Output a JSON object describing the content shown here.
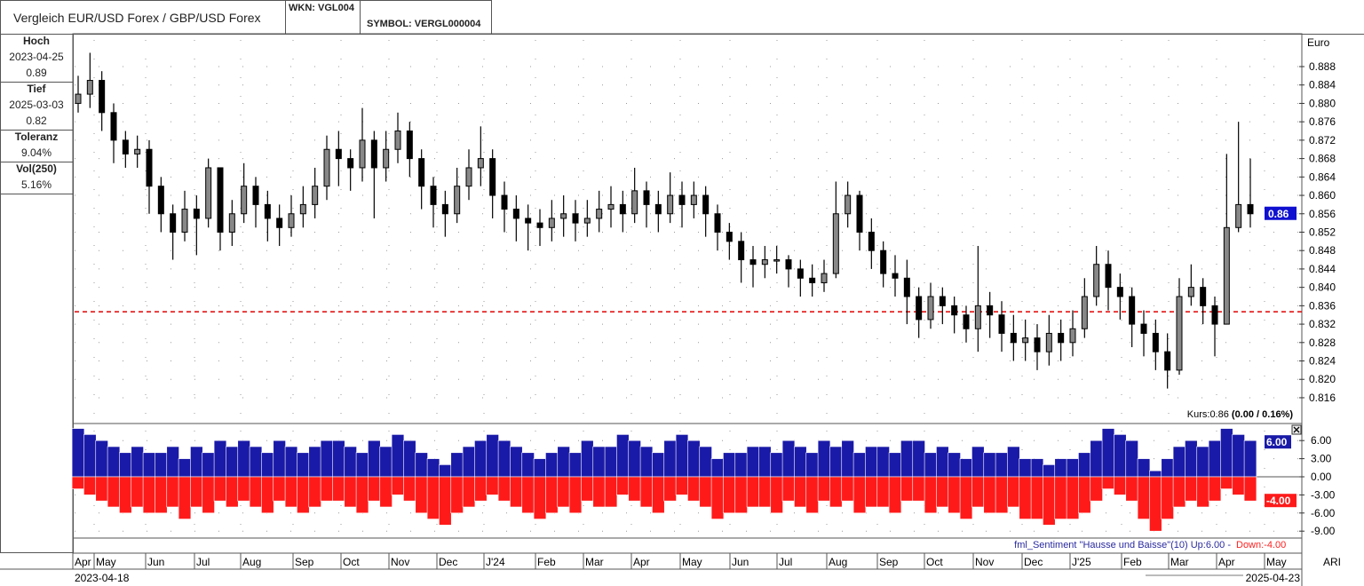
{
  "header": {
    "title": "Vergleich EUR/USD Forex / GBP/USD Forex",
    "wkn": "WKN: VGL004",
    "symbol": "SYMBOL: VERGL000004"
  },
  "stats": {
    "high_label": "Hoch",
    "high_date": "2023-04-25",
    "high_value": "0.89",
    "low_label": "Tief",
    "low_date": "2025-03-03",
    "low_value": "0.82",
    "tolerance_label": "Toleranz",
    "tolerance_value": "9.04%",
    "vol_label": "Vol(250)",
    "vol_value": "5.16%"
  },
  "footer": {
    "start_date": "2023-04-18",
    "end_date": "2025-04-23",
    "corner_label": "ARI",
    "kurs_prefix": "Kurs:0.86 ",
    "kurs_change": "(0.00 / 0.16%)"
  },
  "colors": {
    "up_bar": "#1a1aa8",
    "down_bar": "#ff1a1a",
    "support_line": "#e00000",
    "price_badge": "#1010d0"
  },
  "chart_data": [
    {
      "type": "candlestick",
      "ylabel": "Euro",
      "ylim": [
        0.812,
        0.892
      ],
      "yticks": [
        "0.888",
        "0.884",
        "0.880",
        "0.876",
        "0.872",
        "0.868",
        "0.864",
        "0.860",
        "0.856",
        "0.852",
        "0.848",
        "0.844",
        "0.840",
        "0.836",
        "0.832",
        "0.828",
        "0.824",
        "0.820",
        "0.816"
      ],
      "current_price_label": "0.86",
      "current_price": 0.856,
      "horizontal_line": 0.8347,
      "grid": true,
      "x_start": "2023-04-18",
      "x_end": "2025-04-23",
      "x_ticks": [
        "Apr",
        "May",
        "Jun",
        "Jul",
        "Aug",
        "Sep",
        "Oct",
        "Nov",
        "Dec",
        "J'24",
        "Feb",
        "Mar",
        "Apr",
        "May",
        "Jun",
        "Jul",
        "Aug",
        "Sep",
        "Oct",
        "Nov",
        "Dec",
        "J'25",
        "Feb",
        "Mar",
        "Apr",
        "May"
      ],
      "open_first": 0.88,
      "close": [
        0.882,
        0.885,
        0.878,
        0.872,
        0.869,
        0.87,
        0.862,
        0.856,
        0.852,
        0.857,
        0.855,
        0.866,
        0.852,
        0.856,
        0.862,
        0.858,
        0.855,
        0.853,
        0.856,
        0.858,
        0.862,
        0.87,
        0.868,
        0.866,
        0.872,
        0.866,
        0.87,
        0.874,
        0.868,
        0.862,
        0.858,
        0.856,
        0.862,
        0.866,
        0.868,
        0.86,
        0.857,
        0.855,
        0.854,
        0.853,
        0.855,
        0.856,
        0.854,
        0.855,
        0.857,
        0.858,
        0.856,
        0.861,
        0.858,
        0.856,
        0.86,
        0.858,
        0.86,
        0.856,
        0.852,
        0.85,
        0.846,
        0.845,
        0.846,
        0.846,
        0.844,
        0.842,
        0.841,
        0.843,
        0.856,
        0.86,
        0.852,
        0.848,
        0.843,
        0.842,
        0.838,
        0.833,
        0.838,
        0.836,
        0.834,
        0.831,
        0.836,
        0.834,
        0.83,
        0.828,
        0.829,
        0.826,
        0.83,
        0.828,
        0.831,
        0.838,
        0.845,
        0.84,
        0.838,
        0.832,
        0.83,
        0.826,
        0.822,
        0.838,
        0.84,
        0.836,
        0.832,
        0.853,
        0.858,
        0.856
      ],
      "high": [
        0.886,
        0.891,
        0.887,
        0.88,
        0.874,
        0.873,
        0.872,
        0.864,
        0.858,
        0.861,
        0.86,
        0.868,
        0.866,
        0.859,
        0.867,
        0.864,
        0.861,
        0.858,
        0.86,
        0.862,
        0.866,
        0.873,
        0.874,
        0.87,
        0.879,
        0.874,
        0.874,
        0.878,
        0.876,
        0.87,
        0.864,
        0.861,
        0.866,
        0.87,
        0.875,
        0.87,
        0.863,
        0.86,
        0.858,
        0.857,
        0.859,
        0.86,
        0.859,
        0.859,
        0.861,
        0.862,
        0.861,
        0.866,
        0.863,
        0.861,
        0.865,
        0.863,
        0.863,
        0.862,
        0.858,
        0.854,
        0.852,
        0.849,
        0.849,
        0.849,
        0.847,
        0.846,
        0.845,
        0.846,
        0.863,
        0.863,
        0.861,
        0.855,
        0.85,
        0.847,
        0.846,
        0.84,
        0.841,
        0.84,
        0.838,
        0.836,
        0.849,
        0.839,
        0.837,
        0.834,
        0.833,
        0.832,
        0.834,
        0.833,
        0.835,
        0.842,
        0.849,
        0.848,
        0.843,
        0.84,
        0.835,
        0.833,
        0.83,
        0.842,
        0.845,
        0.842,
        0.838,
        0.869,
        0.876,
        0.868
      ],
      "low": [
        0.878,
        0.879,
        0.874,
        0.867,
        0.866,
        0.866,
        0.856,
        0.852,
        0.846,
        0.85,
        0.847,
        0.853,
        0.848,
        0.849,
        0.854,
        0.853,
        0.85,
        0.849,
        0.851,
        0.853,
        0.855,
        0.859,
        0.862,
        0.861,
        0.863,
        0.855,
        0.863,
        0.867,
        0.864,
        0.857,
        0.853,
        0.851,
        0.854,
        0.859,
        0.862,
        0.855,
        0.852,
        0.85,
        0.848,
        0.849,
        0.85,
        0.851,
        0.85,
        0.851,
        0.852,
        0.853,
        0.852,
        0.854,
        0.853,
        0.852,
        0.854,
        0.853,
        0.855,
        0.851,
        0.848,
        0.846,
        0.841,
        0.84,
        0.842,
        0.843,
        0.84,
        0.838,
        0.838,
        0.839,
        0.842,
        0.853,
        0.848,
        0.844,
        0.84,
        0.838,
        0.832,
        0.829,
        0.831,
        0.832,
        0.83,
        0.828,
        0.826,
        0.829,
        0.826,
        0.824,
        0.824,
        0.822,
        0.823,
        0.824,
        0.825,
        0.829,
        0.836,
        0.835,
        0.833,
        0.827,
        0.825,
        0.822,
        0.818,
        0.821,
        0.836,
        0.832,
        0.825,
        0.844,
        0.852,
        0.853
      ]
    },
    {
      "type": "bar",
      "title": "fml_Sentiment \"Hausse und Baisse\"(10) Up:6.00 - ",
      "title_down": "Down:-4.00",
      "ylim": [
        -10,
        9
      ],
      "yticks": [
        "6.00",
        "3.00",
        "0.00",
        "-3.00",
        "-6.00",
        "-9.00"
      ],
      "up_badge": "6.00",
      "down_badge": "-4.00",
      "series": [
        {
          "name": "Up",
          "values": [
            8,
            7,
            6,
            5,
            4,
            5,
            4,
            4,
            5,
            3,
            5,
            4,
            6,
            5,
            6,
            5,
            4,
            6,
            5,
            4,
            5,
            6,
            6,
            5,
            4,
            6,
            5,
            7,
            6,
            4,
            3,
            2,
            4,
            5,
            6,
            7,
            6,
            5,
            4,
            3,
            4,
            5,
            4,
            6,
            5,
            5,
            7,
            6,
            5,
            4,
            6,
            7,
            6,
            5,
            3,
            4,
            4,
            5,
            5,
            4,
            6,
            5,
            4,
            6,
            5,
            6,
            4,
            5,
            5,
            4,
            6,
            6,
            4,
            5,
            4,
            3,
            5,
            4,
            4,
            5,
            3,
            3,
            2,
            3,
            3,
            4,
            6,
            8,
            7,
            6,
            3,
            1,
            3,
            5,
            6,
            5,
            6,
            8,
            7,
            6
          ]
        },
        {
          "name": "Down",
          "values": [
            -2,
            -3,
            -4,
            -5,
            -6,
            -5,
            -6,
            -6,
            -5,
            -7,
            -5,
            -6,
            -4,
            -5,
            -4,
            -5,
            -6,
            -4,
            -5,
            -6,
            -5,
            -4,
            -4,
            -5,
            -6,
            -4,
            -5,
            -3,
            -4,
            -6,
            -7,
            -8,
            -6,
            -5,
            -4,
            -3,
            -4,
            -5,
            -6,
            -7,
            -6,
            -5,
            -6,
            -4,
            -5,
            -5,
            -3,
            -4,
            -5,
            -6,
            -4,
            -3,
            -4,
            -5,
            -7,
            -6,
            -6,
            -5,
            -5,
            -6,
            -4,
            -5,
            -6,
            -4,
            -5,
            -4,
            -6,
            -5,
            -5,
            -6,
            -4,
            -4,
            -6,
            -5,
            -6,
            -7,
            -5,
            -6,
            -6,
            -5,
            -7,
            -7,
            -8,
            -7,
            -7,
            -6,
            -4,
            -2,
            -3,
            -4,
            -7,
            -9,
            -7,
            -5,
            -4,
            -5,
            -4,
            -2,
            -3,
            -4
          ]
        }
      ]
    }
  ]
}
